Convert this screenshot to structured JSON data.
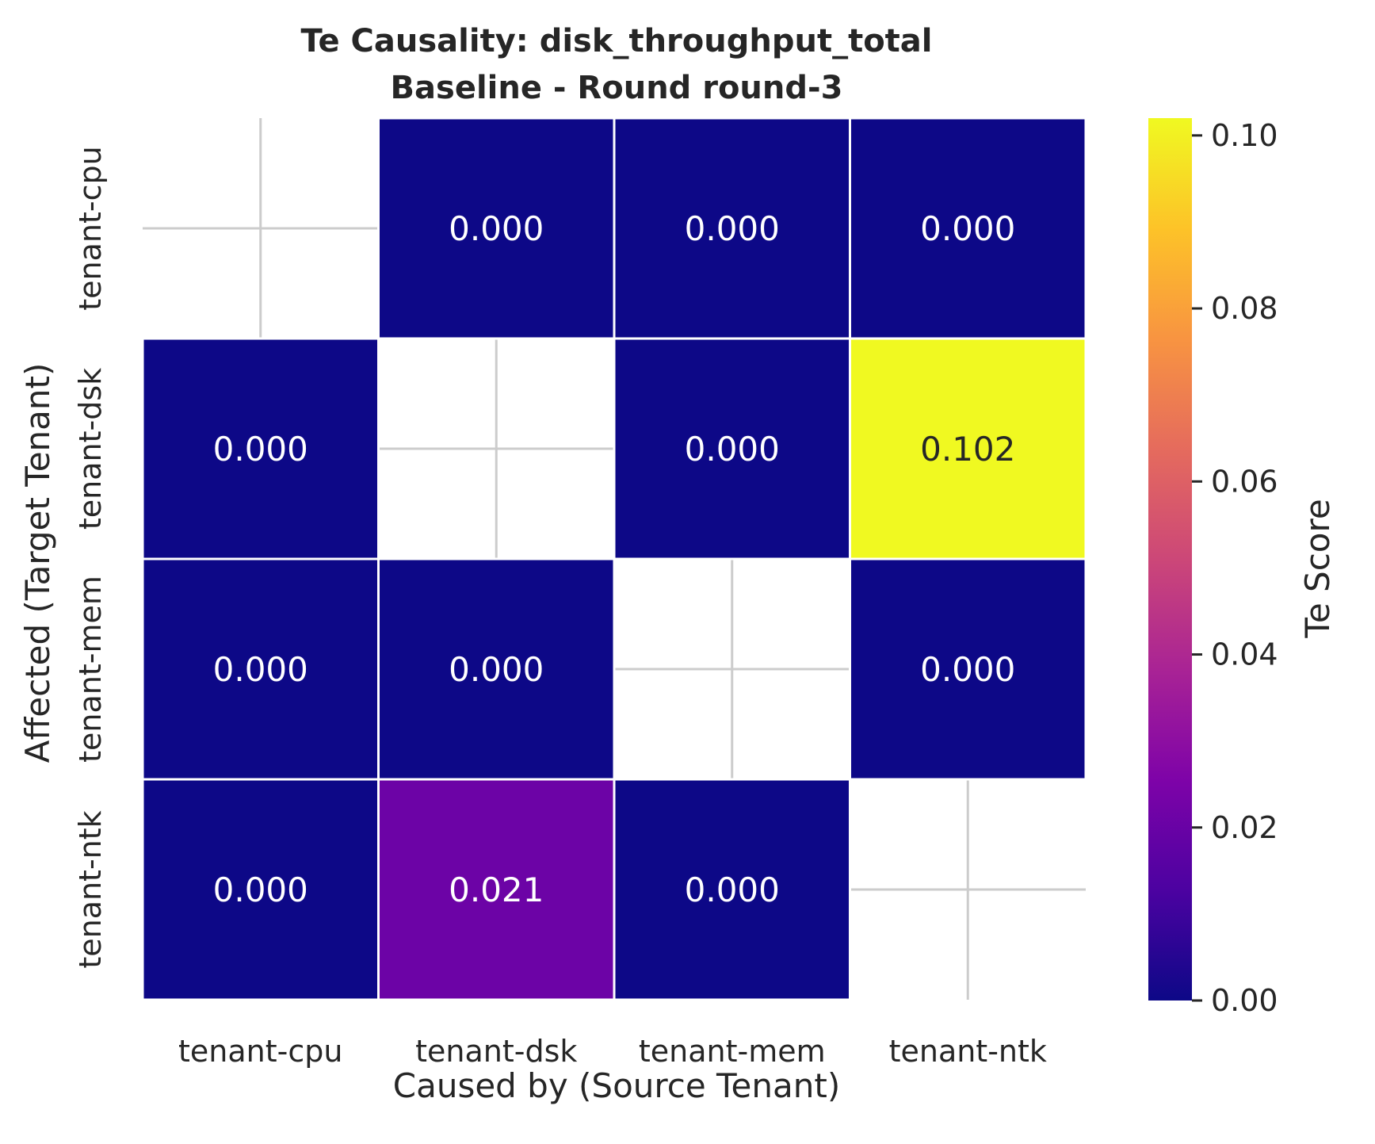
{
  "chart_data": {
    "type": "heatmap",
    "title": "Te Causality: disk_throughput_total",
    "subtitle": "Baseline - Round round-3",
    "xlabel": "Caused by (Source Tenant)",
    "ylabel": "Affected (Target Tenant)",
    "x_categories": [
      "tenant-cpu",
      "tenant-dsk",
      "tenant-mem",
      "tenant-ntk"
    ],
    "y_categories": [
      "tenant-cpu",
      "tenant-dsk",
      "tenant-mem",
      "tenant-ntk"
    ],
    "values": [
      [
        null,
        0.0,
        0.0,
        0.0
      ],
      [
        0.0,
        null,
        0.0,
        0.102
      ],
      [
        0.0,
        0.0,
        null,
        0.0
      ],
      [
        0.0,
        0.021,
        0.0,
        null
      ]
    ],
    "cell_labels": [
      [
        "",
        "0.000",
        "0.000",
        "0.000"
      ],
      [
        "0.000",
        "",
        "0.000",
        "0.102"
      ],
      [
        "0.000",
        "0.000",
        "",
        "0.000"
      ],
      [
        "0.000",
        "0.021",
        "0.000",
        ""
      ]
    ],
    "colorbar": {
      "label": "Te Score",
      "colormap": "plasma",
      "range": [
        0.0,
        0.102
      ],
      "ticks": [
        0.0,
        0.02,
        0.04,
        0.06,
        0.08,
        0.1
      ],
      "tick_labels": [
        "0.00",
        "0.02",
        "0.04",
        "0.06",
        "0.08",
        "0.10"
      ]
    },
    "grid": true,
    "colors": {
      "low": "#0d0887",
      "high": "#f0f921",
      "cell_border": "#ffffff",
      "grid": "#cccccc",
      "text_light": "#ffffff",
      "text_dark": "#262626"
    }
  }
}
